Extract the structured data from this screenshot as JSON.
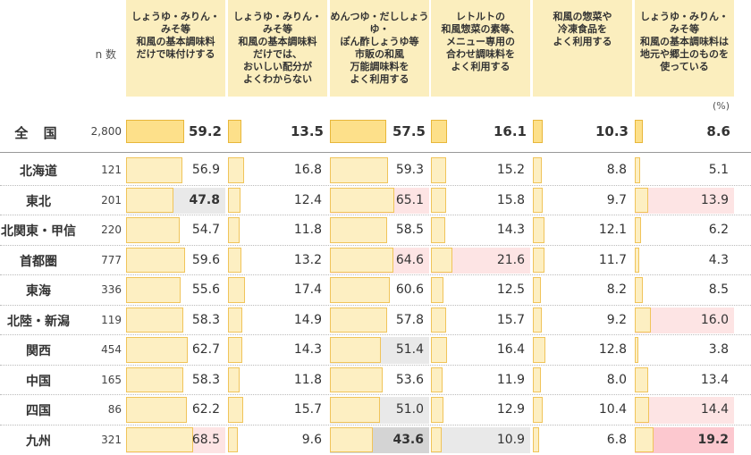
{
  "chart_data": {
    "type": "table",
    "n_label": "n 数",
    "unit": "(%)",
    "columns": [
      "しょうゆ・みりん・\nみそ等\n和風の基本調味料\nだけで味付けする",
      "しょうゆ・みりん・\nみそ等\n和風の基本調味料\nだけでは、\nおいしい配分が\nよくわからない",
      "めんつゆ・だししょうゆ・\nぽん酢しょうゆ等\n市販の和風\n万能調味料を\nよく利用する",
      "レトルトの\n和風惣菜の素等、\nメニュー専用の\n合わせ調味料を\nよく利用する",
      "和風の惣菜や\n冷凍食品を\nよく利用する",
      "しょうゆ・みりん・\nみそ等\n和風の基本調味料は\n地元や郷土のものを\n使っている"
    ],
    "total": {
      "name": "全 国",
      "n": "2,800",
      "values": [
        59.2,
        13.5,
        57.5,
        16.1,
        10.3,
        8.6
      ]
    },
    "rows": [
      {
        "name": "北海道",
        "n": "121",
        "values": [
          56.9,
          16.8,
          59.3,
          15.2,
          8.8,
          5.1
        ],
        "flags": [
          "",
          "",
          "",
          "",
          "",
          ""
        ]
      },
      {
        "name": "東北",
        "n": "201",
        "values": [
          47.8,
          12.4,
          65.1,
          15.8,
          9.7,
          13.9
        ],
        "flags": [
          "low",
          "",
          "high",
          "",
          "",
          "high"
        ]
      },
      {
        "name": "北関東・甲信",
        "n": "220",
        "values": [
          54.7,
          11.8,
          58.5,
          14.3,
          12.1,
          6.2
        ],
        "flags": [
          "",
          "",
          "",
          "",
          "",
          ""
        ]
      },
      {
        "name": "首都圏",
        "n": "777",
        "values": [
          59.6,
          13.2,
          64.6,
          21.6,
          11.7,
          4.3
        ],
        "flags": [
          "",
          "",
          "high",
          "high",
          "",
          ""
        ]
      },
      {
        "name": "東海",
        "n": "336",
        "values": [
          55.6,
          17.4,
          60.6,
          12.5,
          8.2,
          8.5
        ],
        "flags": [
          "",
          "",
          "",
          "",
          "",
          ""
        ]
      },
      {
        "name": "北陸・新潟",
        "n": "119",
        "values": [
          58.3,
          14.9,
          57.8,
          15.7,
          9.2,
          16.0
        ],
        "flags": [
          "",
          "",
          "",
          "",
          "",
          "high"
        ]
      },
      {
        "name": "関西",
        "n": "454",
        "values": [
          62.7,
          14.3,
          51.4,
          16.4,
          12.8,
          3.8
        ],
        "flags": [
          "",
          "",
          "low",
          "",
          "",
          ""
        ]
      },
      {
        "name": "中国",
        "n": "165",
        "values": [
          58.3,
          11.8,
          53.6,
          11.9,
          8.0,
          13.4
        ],
        "flags": [
          "",
          "",
          "",
          "",
          "",
          ""
        ]
      },
      {
        "name": "四国",
        "n": "86",
        "values": [
          62.2,
          15.7,
          51.0,
          12.9,
          10.4,
          14.4
        ],
        "flags": [
          "",
          "",
          "low",
          "",
          "",
          "high"
        ]
      },
      {
        "name": "九州",
        "n": "321",
        "values": [
          68.5,
          9.6,
          43.6,
          10.9,
          6.8,
          19.2
        ],
        "flags": [
          "high",
          "",
          "lowstrong",
          "low",
          "",
          "highstrong"
        ]
      }
    ],
    "colors": {
      "header": "#fbeebe",
      "bar": "#fdefc2",
      "bar_total": "#fde08a",
      "high": "#fddcdc",
      "low": "#e6e6e6"
    }
  }
}
